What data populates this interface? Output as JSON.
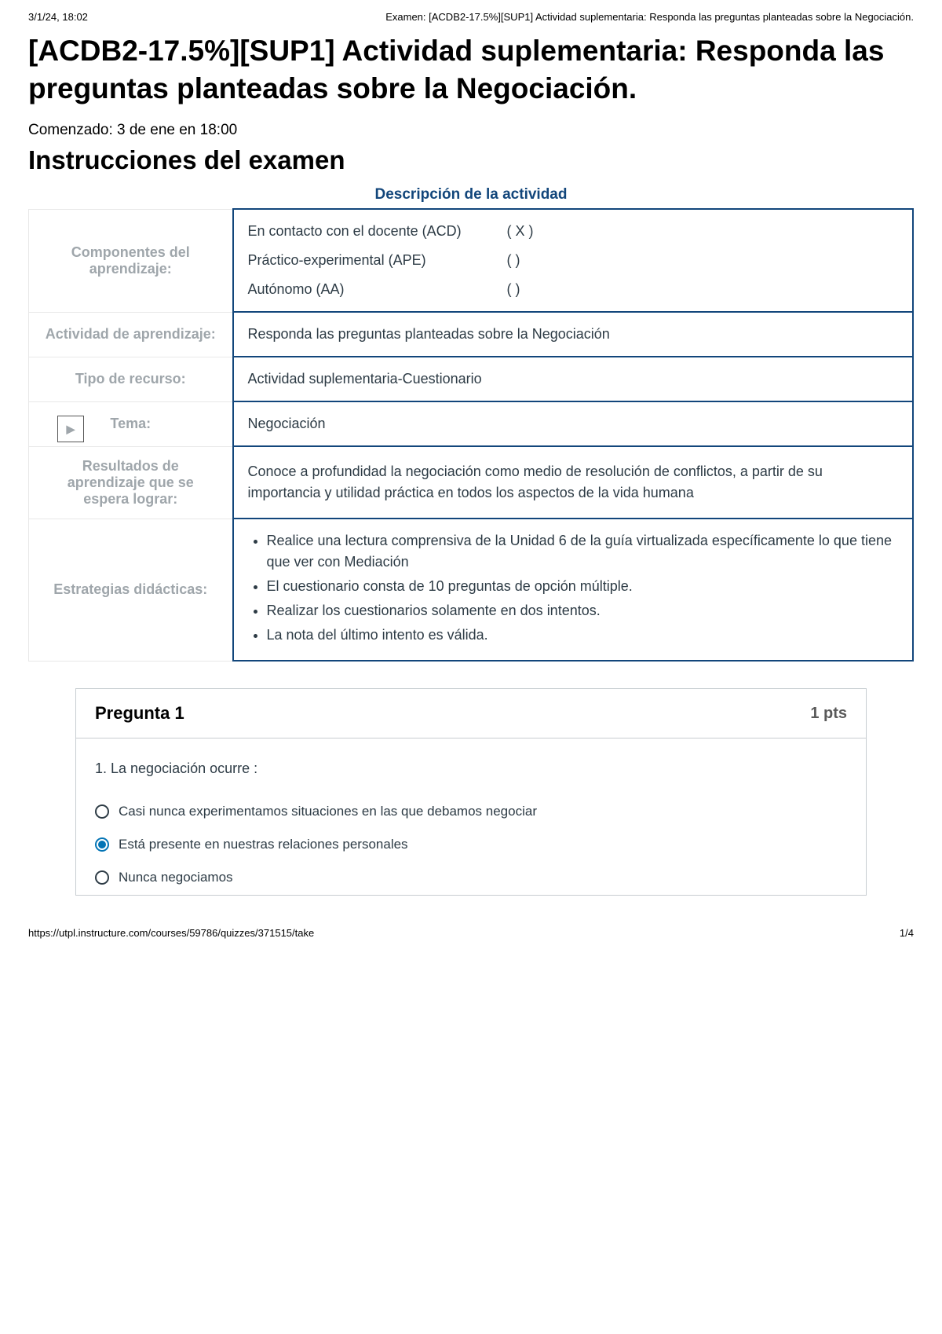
{
  "header": {
    "timestamp": "3/1/24, 18:02",
    "doc_title": "Examen: [ACDB2-17.5%][SUP1] Actividad suplementaria: Responda las preguntas planteadas sobre la Negociación."
  },
  "title": "[ACDB2-17.5%][SUP1] Actividad suplementaria: Responda las preguntas planteadas sobre la Negociación.",
  "started": "Comenzado: 3 de ene en 18:00",
  "instructions_heading": "Instrucciones del examen",
  "description_title": "Descripción de la actividad",
  "table": {
    "componentes_label": "Componentes del aprendizaje:",
    "componentes_rows": [
      {
        "label": "En contacto con el docente (ACD)",
        "mark": "(  X  )"
      },
      {
        "label": "Práctico-experimental (APE)",
        "mark": "(       )"
      },
      {
        "label": "Autónomo (AA)",
        "mark": "(       )"
      }
    ],
    "actividad_label": "Actividad de aprendizaje:",
    "actividad_value": "Responda las preguntas planteadas sobre la Negociación",
    "tipo_label": "Tipo de recurso:",
    "tipo_value": "Actividad suplementaria-Cuestionario",
    "tema_label": "Tema:",
    "tema_value": "Negociación",
    "resultados_label": "Resultados de aprendizaje que se espera lograr:",
    "resultados_value": "Conoce a profundidad la negociación como medio de resolución de conflictos, a partir de su importancia y utilidad práctica en todos los aspectos de la vida humana",
    "estrategias_label": "Estrategias didácticas:",
    "estrategias_items": [
      "Realice una lectura comprensiva de la Unidad 6 de la guía virtualizada específicamente lo que tiene que ver con Mediación",
      "El cuestionario consta de 10 preguntas de opción múltiple.",
      "Realizar los cuestionarios solamente en dos intentos.",
      "La nota del último intento es válida."
    ]
  },
  "question": {
    "title": "Pregunta 1",
    "points": "1 pts",
    "text": "1. La negociación ocurre :",
    "options": [
      {
        "text": "Casi nunca experimentamos situaciones en las que debamos negociar",
        "selected": false
      },
      {
        "text": "Está presente en nuestras relaciones personales",
        "selected": true
      },
      {
        "text": "Nunca negociamos",
        "selected": false
      }
    ]
  },
  "footer": {
    "url": "https://utpl.instructure.com/courses/59786/quizzes/371515/take",
    "page": "1/4"
  },
  "colors": {
    "table_border": "#12467b",
    "label_grey": "#9fa6ab",
    "radio_selected": "#0374b5",
    "question_border": "#c7cdd1"
  }
}
